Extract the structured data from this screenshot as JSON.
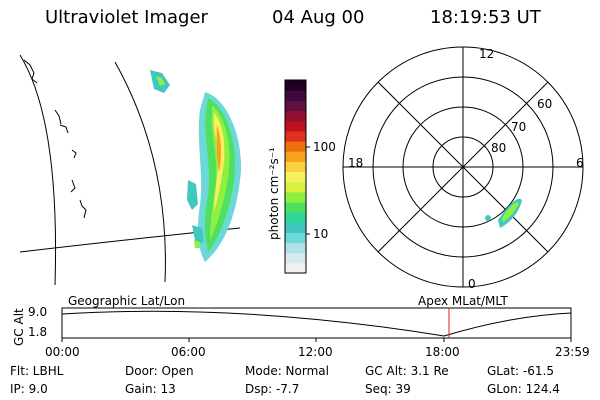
{
  "header": {
    "title": "Ultraviolet Imager",
    "date": "04 Aug 00",
    "time": "18:19:53 UT"
  },
  "colorbar": {
    "unit_label": "photon cm⁻²s⁻¹",
    "ticks": [
      "100",
      "10"
    ],
    "colors": [
      "#f0f0f0",
      "#d8e8f0",
      "#b0e0e8",
      "#6cd8d8",
      "#40c8c0",
      "#30d898",
      "#50e060",
      "#90f040",
      "#d8f040",
      "#f8f060",
      "#f8d040",
      "#f8a020",
      "#f07010",
      "#e03020",
      "#c01020",
      "#901030",
      "#601040",
      "#400840",
      "#200020"
    ]
  },
  "polar": {
    "labels": {
      "top": "12",
      "left": "18",
      "right": "6",
      "bottom": "0"
    },
    "rings": [
      "60",
      "70",
      "80"
    ]
  },
  "timeline": {
    "geo_label": "Geographic Lat/Lon",
    "apex_label": "Apex MLat/MLT",
    "axis_label": "GC Alt",
    "y_ticks": [
      "9.0",
      "1.8"
    ],
    "x_ticks": [
      "00:00",
      "06:00",
      "12:00",
      "18:00",
      "23:59"
    ]
  },
  "info": {
    "flt": "Flt:  LBHL",
    "door": "Door: Open",
    "mode": "Mode: Normal",
    "gcalt": "GC Alt: 3.1 Re",
    "glat": "GLat: -61.5",
    "ip": "IP:  9.0",
    "gain": "Gain: 13",
    "dsp": "Dsp:     -7.7",
    "seq": "Seq: 39",
    "glon": "GLon: 124.4"
  }
}
